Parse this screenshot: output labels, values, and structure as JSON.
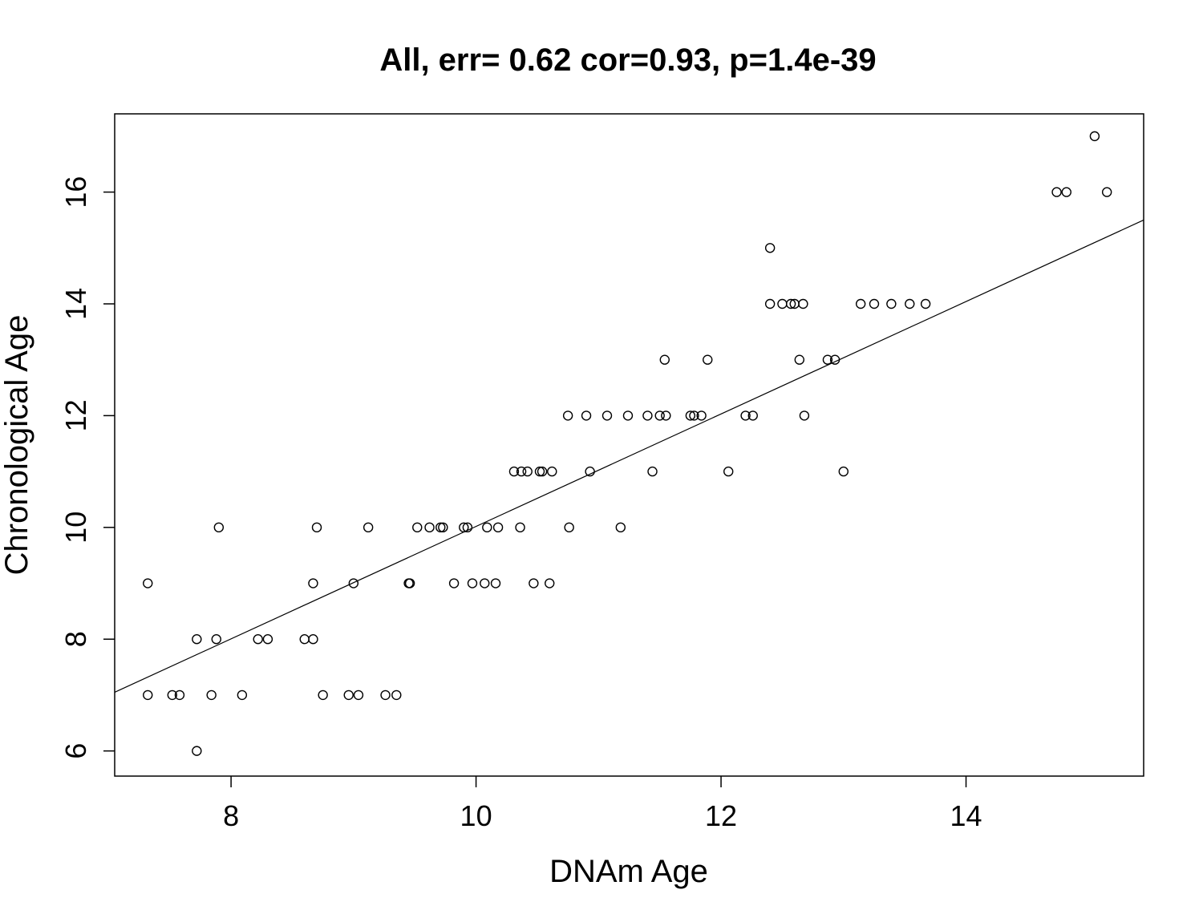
{
  "chart_data": {
    "type": "scatter",
    "title": "All, err= 0.62 cor=0.93, p=1.4e-39",
    "xlabel": "DNAm Age",
    "ylabel": "Chronological Age",
    "xlim": [
      7.05,
      15.45
    ],
    "ylim": [
      5.55,
      17.4
    ],
    "xticks": [
      8,
      10,
      12,
      14
    ],
    "yticks": [
      6,
      8,
      10,
      12,
      14,
      16
    ],
    "grid": false,
    "marker": "open-circle",
    "points": [
      {
        "x": 7.32,
        "y": 9
      },
      {
        "x": 7.32,
        "y": 7
      },
      {
        "x": 7.52,
        "y": 7
      },
      {
        "x": 7.58,
        "y": 7
      },
      {
        "x": 7.72,
        "y": 8
      },
      {
        "x": 7.72,
        "y": 6
      },
      {
        "x": 7.84,
        "y": 7
      },
      {
        "x": 7.88,
        "y": 8
      },
      {
        "x": 7.9,
        "y": 10
      },
      {
        "x": 8.09,
        "y": 7
      },
      {
        "x": 8.22,
        "y": 8
      },
      {
        "x": 8.3,
        "y": 8
      },
      {
        "x": 8.6,
        "y": 8
      },
      {
        "x": 8.67,
        "y": 8
      },
      {
        "x": 8.67,
        "y": 9
      },
      {
        "x": 8.7,
        "y": 10
      },
      {
        "x": 8.75,
        "y": 7
      },
      {
        "x": 8.96,
        "y": 7
      },
      {
        "x": 9.0,
        "y": 9
      },
      {
        "x": 9.04,
        "y": 7
      },
      {
        "x": 9.12,
        "y": 10
      },
      {
        "x": 9.26,
        "y": 7
      },
      {
        "x": 9.35,
        "y": 7
      },
      {
        "x": 9.45,
        "y": 9
      },
      {
        "x": 9.46,
        "y": 9
      },
      {
        "x": 9.52,
        "y": 10
      },
      {
        "x": 9.62,
        "y": 10
      },
      {
        "x": 9.71,
        "y": 10
      },
      {
        "x": 9.73,
        "y": 10
      },
      {
        "x": 9.82,
        "y": 9
      },
      {
        "x": 9.9,
        "y": 10
      },
      {
        "x": 9.93,
        "y": 10
      },
      {
        "x": 9.97,
        "y": 9
      },
      {
        "x": 10.07,
        "y": 9
      },
      {
        "x": 10.09,
        "y": 10
      },
      {
        "x": 10.16,
        "y": 9
      },
      {
        "x": 10.18,
        "y": 10
      },
      {
        "x": 10.31,
        "y": 11
      },
      {
        "x": 10.36,
        "y": 10
      },
      {
        "x": 10.37,
        "y": 11
      },
      {
        "x": 10.42,
        "y": 11
      },
      {
        "x": 10.47,
        "y": 9
      },
      {
        "x": 10.52,
        "y": 11
      },
      {
        "x": 10.54,
        "y": 11
      },
      {
        "x": 10.6,
        "y": 9
      },
      {
        "x": 10.62,
        "y": 11
      },
      {
        "x": 10.75,
        "y": 12
      },
      {
        "x": 10.76,
        "y": 10
      },
      {
        "x": 10.9,
        "y": 12
      },
      {
        "x": 10.93,
        "y": 11
      },
      {
        "x": 11.07,
        "y": 12
      },
      {
        "x": 11.18,
        "y": 10
      },
      {
        "x": 11.24,
        "y": 12
      },
      {
        "x": 11.4,
        "y": 12
      },
      {
        "x": 11.44,
        "y": 11
      },
      {
        "x": 11.5,
        "y": 12
      },
      {
        "x": 11.54,
        "y": 13
      },
      {
        "x": 11.55,
        "y": 12
      },
      {
        "x": 11.75,
        "y": 12
      },
      {
        "x": 11.78,
        "y": 12
      },
      {
        "x": 11.84,
        "y": 12
      },
      {
        "x": 11.89,
        "y": 13
      },
      {
        "x": 12.06,
        "y": 11
      },
      {
        "x": 12.2,
        "y": 12
      },
      {
        "x": 12.26,
        "y": 12
      },
      {
        "x": 12.4,
        "y": 15
      },
      {
        "x": 12.4,
        "y": 14
      },
      {
        "x": 12.5,
        "y": 14
      },
      {
        "x": 12.57,
        "y": 14
      },
      {
        "x": 12.6,
        "y": 14
      },
      {
        "x": 12.64,
        "y": 13
      },
      {
        "x": 12.67,
        "y": 14
      },
      {
        "x": 12.68,
        "y": 12
      },
      {
        "x": 12.87,
        "y": 13
      },
      {
        "x": 12.93,
        "y": 13
      },
      {
        "x": 13.0,
        "y": 11
      },
      {
        "x": 13.14,
        "y": 14
      },
      {
        "x": 13.25,
        "y": 14
      },
      {
        "x": 13.39,
        "y": 14
      },
      {
        "x": 13.54,
        "y": 14
      },
      {
        "x": 13.67,
        "y": 14
      },
      {
        "x": 14.74,
        "y": 16
      },
      {
        "x": 14.82,
        "y": 16
      },
      {
        "x": 15.05,
        "y": 17
      },
      {
        "x": 15.15,
        "y": 16
      }
    ],
    "fit_line": {
      "x": [
        7.05,
        15.45
      ],
      "y": [
        7.05,
        15.5
      ]
    }
  }
}
